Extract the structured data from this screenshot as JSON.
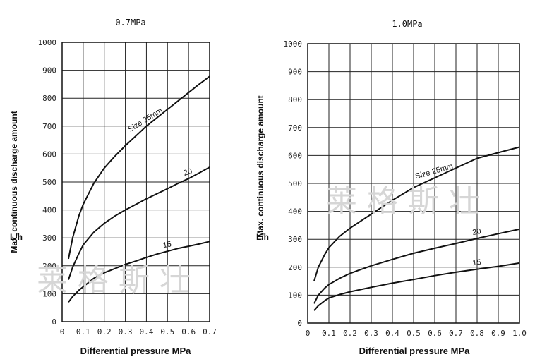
{
  "watermark": "莱格斯壮",
  "chart_data": [
    {
      "type": "line",
      "title": "0.7MPa",
      "xlabel": "Differential pressure MPa",
      "ylabel": "Max. continuous discharge amount",
      "yunit": "L/h",
      "xlim": [
        0,
        0.7
      ],
      "ylim": [
        0,
        1000
      ],
      "xticks": [
        "0",
        "0.1",
        "0.2",
        "0.3",
        "0.4",
        "0.5",
        "0.6",
        "0.7"
      ],
      "yticks": [
        "0",
        "100",
        "200",
        "300",
        "400",
        "500",
        "600",
        "700",
        "800",
        "900",
        "1000"
      ],
      "grid": true,
      "series": [
        {
          "name": "Size 25mm",
          "x": [
            0.03,
            0.05,
            0.08,
            0.1,
            0.15,
            0.2,
            0.25,
            0.3,
            0.35,
            0.4,
            0.45,
            0.5,
            0.55,
            0.6,
            0.65,
            0.7
          ],
          "y": [
            225,
            300,
            380,
            420,
            495,
            550,
            592,
            630,
            665,
            700,
            730,
            760,
            790,
            820,
            850,
            878
          ]
        },
        {
          "name": "20",
          "x": [
            0.03,
            0.05,
            0.08,
            0.1,
            0.15,
            0.2,
            0.25,
            0.3,
            0.35,
            0.4,
            0.45,
            0.5,
            0.55,
            0.6,
            0.65,
            0.7
          ],
          "y": [
            150,
            195,
            245,
            275,
            320,
            352,
            378,
            400,
            420,
            440,
            458,
            476,
            495,
            512,
            532,
            553
          ]
        },
        {
          "name": "15",
          "x": [
            0.03,
            0.05,
            0.08,
            0.1,
            0.15,
            0.2,
            0.25,
            0.3,
            0.35,
            0.4,
            0.45,
            0.5,
            0.55,
            0.6,
            0.65,
            0.7
          ],
          "y": [
            70,
            90,
            113,
            125,
            155,
            175,
            190,
            205,
            217,
            230,
            242,
            252,
            262,
            270,
            278,
            287
          ]
        }
      ]
    },
    {
      "type": "line",
      "title": "1.0MPa",
      "xlabel": "Differential pressure MPa",
      "ylabel": "Max. continuous discharge amount",
      "yunit": "L/h",
      "xlim": [
        0,
        1.0
      ],
      "ylim": [
        0,
        1000
      ],
      "xticks": [
        "0",
        "0.1",
        "0.2",
        "0.3",
        "0.4",
        "0.5",
        "0.6",
        "0.7",
        "0.8",
        "0.9",
        "1.0"
      ],
      "yticks": [
        "0",
        "100",
        "200",
        "300",
        "400",
        "500",
        "600",
        "700",
        "800",
        "900",
        "1000"
      ],
      "grid": true,
      "series": [
        {
          "name": "Size 25mm",
          "x": [
            0.03,
            0.05,
            0.08,
            0.1,
            0.15,
            0.2,
            0.3,
            0.4,
            0.5,
            0.6,
            0.7,
            0.8,
            0.9,
            1.0
          ],
          "y": [
            150,
            200,
            245,
            270,
            310,
            340,
            390,
            440,
            485,
            520,
            555,
            590,
            610,
            630
          ]
        },
        {
          "name": "20",
          "x": [
            0.03,
            0.05,
            0.08,
            0.1,
            0.15,
            0.2,
            0.3,
            0.4,
            0.5,
            0.6,
            0.7,
            0.8,
            0.9,
            1.0
          ],
          "y": [
            70,
            100,
            125,
            138,
            160,
            178,
            205,
            228,
            250,
            268,
            285,
            303,
            320,
            336
          ]
        },
        {
          "name": "15",
          "x": [
            0.03,
            0.05,
            0.08,
            0.1,
            0.15,
            0.2,
            0.3,
            0.4,
            0.5,
            0.6,
            0.7,
            0.8,
            0.9,
            1.0
          ],
          "y": [
            45,
            62,
            80,
            90,
            102,
            112,
            128,
            143,
            156,
            170,
            182,
            193,
            203,
            215
          ]
        }
      ]
    }
  ]
}
